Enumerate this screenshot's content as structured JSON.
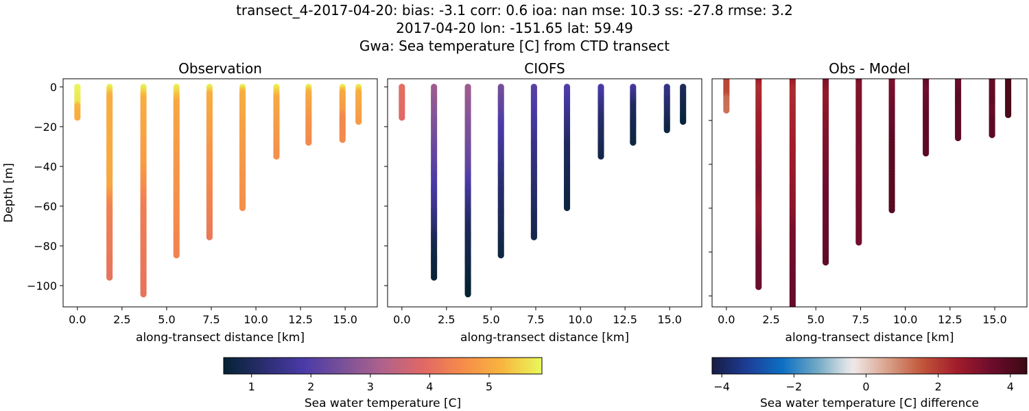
{
  "title_lines": [
    "transect_4-2017-04-20: bias: -3.1  corr: 0.6  ioa: nan  mse: 10.3  ss: -27.8  rmse: 3.2",
    "2017-04-20 lon: -151.65 lat: 59.49",
    "Gwa: Sea temperature [C] from CTD transect"
  ],
  "chart_data": [
    {
      "type": "scatter",
      "title": "Observation",
      "xlabel": "along-transect distance [km]",
      "ylabel": "Depth [m]",
      "xlim": [
        -0.8,
        16.8
      ],
      "ylim": [
        -110.7,
        4.1
      ],
      "xticks": [
        "0.0",
        "2.5",
        "5.0",
        "7.5",
        "10.0",
        "12.5",
        "15.0"
      ],
      "yticks": [
        "0",
        "−20",
        "−40",
        "−60",
        "−80",
        "−100"
      ],
      "colormap": "thermal",
      "casts": [
        {
          "x": 0.0,
          "profile": [
            [
              0,
              5.85
            ],
            [
              -8,
              5.7
            ],
            [
              -10,
              5.2
            ],
            [
              -16,
              5.1
            ]
          ]
        },
        {
          "x": 1.8,
          "profile": [
            [
              0,
              5.8
            ],
            [
              -5,
              5.1
            ],
            [
              -50,
              5.0
            ],
            [
              -60,
              4.4
            ],
            [
              -96,
              4.1
            ]
          ]
        },
        {
          "x": 3.7,
          "profile": [
            [
              0,
              5.8
            ],
            [
              -6,
              5.1
            ],
            [
              -40,
              4.8
            ],
            [
              -60,
              4.3
            ],
            [
              -105,
              4.1
            ]
          ]
        },
        {
          "x": 5.55,
          "profile": [
            [
              0,
              5.8
            ],
            [
              -8,
              5.0
            ],
            [
              -30,
              4.8
            ],
            [
              -85,
              4.4
            ]
          ]
        },
        {
          "x": 7.4,
          "profile": [
            [
              0,
              5.8
            ],
            [
              -4,
              5.1
            ],
            [
              -40,
              4.6
            ],
            [
              -76,
              4.2
            ]
          ]
        },
        {
          "x": 9.25,
          "profile": [
            [
              0,
              5.8
            ],
            [
              -3,
              5.1
            ],
            [
              -30,
              4.8
            ],
            [
              -61,
              4.6
            ]
          ]
        },
        {
          "x": 11.15,
          "profile": [
            [
              0,
              5.8
            ],
            [
              -6,
              5.0
            ],
            [
              -35,
              4.6
            ]
          ]
        },
        {
          "x": 12.95,
          "profile": [
            [
              0,
              5.8
            ],
            [
              -3,
              5.1
            ],
            [
              -15,
              4.7
            ],
            [
              -28,
              4.5
            ]
          ]
        },
        {
          "x": 14.85,
          "profile": [
            [
              0,
              5.8
            ],
            [
              -3,
              5.0
            ],
            [
              -12,
              4.8
            ],
            [
              -15,
              4.5
            ],
            [
              -27,
              4.5
            ]
          ]
        },
        {
          "x": 15.75,
          "profile": [
            [
              0,
              5.8
            ],
            [
              -3,
              5.1
            ],
            [
              -18,
              4.8
            ]
          ]
        }
      ]
    },
    {
      "type": "scatter",
      "title": "CIOFS",
      "xlabel": "along-transect distance [km]",
      "xlim": [
        -0.8,
        16.8
      ],
      "ylim": [
        -110.7,
        4.1
      ],
      "xticks": [
        "0.0",
        "2.5",
        "5.0",
        "7.5",
        "10.0",
        "12.5",
        "15.0"
      ],
      "colormap": "thermal",
      "casts": [
        {
          "x": 0.0,
          "profile": [
            [
              0,
              4.0
            ],
            [
              -16,
              3.9
            ]
          ]
        },
        {
          "x": 1.8,
          "profile": [
            [
              0,
              3.0
            ],
            [
              -40,
              2.1
            ],
            [
              -60,
              1.6
            ],
            [
              -80,
              0.8
            ],
            [
              -96,
              0.6
            ]
          ]
        },
        {
          "x": 3.7,
          "profile": [
            [
              0,
              3.0
            ],
            [
              -40,
              2.2
            ],
            [
              -70,
              1.0
            ],
            [
              -105,
              0.5
            ]
          ]
        },
        {
          "x": 5.55,
          "profile": [
            [
              0,
              2.5
            ],
            [
              -20,
              1.9
            ],
            [
              -50,
              1.2
            ],
            [
              -85,
              0.7
            ]
          ]
        },
        {
          "x": 7.4,
          "profile": [
            [
              0,
              2.1
            ],
            [
              -30,
              1.5
            ],
            [
              -76,
              0.8
            ]
          ]
        },
        {
          "x": 9.25,
          "profile": [
            [
              0,
              2.0
            ],
            [
              -30,
              1.0
            ],
            [
              -61,
              0.7
            ]
          ]
        },
        {
          "x": 11.15,
          "profile": [
            [
              0,
              1.9
            ],
            [
              -15,
              1.2
            ],
            [
              -35,
              0.8
            ]
          ]
        },
        {
          "x": 12.95,
          "profile": [
            [
              0,
              1.8
            ],
            [
              -10,
              1.0
            ],
            [
              -28,
              0.7
            ]
          ]
        },
        {
          "x": 14.85,
          "profile": [
            [
              0,
              1.5
            ],
            [
              -22,
              0.7
            ]
          ]
        },
        {
          "x": 15.75,
          "profile": [
            [
              0,
              1.0
            ],
            [
              -18,
              0.6
            ]
          ]
        }
      ]
    },
    {
      "type": "scatter",
      "title": "Obs - Model",
      "xlabel": "along-transect distance [km]",
      "xlim": [
        -0.8,
        16.8
      ],
      "ylim": [
        -105,
        -1
      ],
      "xticks": [
        "0.0",
        "2.5",
        "5.0",
        "7.5",
        "10.0",
        "12.5",
        "15.0"
      ],
      "colormap": "balance",
      "difference_of": [
        "Observation",
        "CIOFS"
      ]
    }
  ],
  "colorbars": [
    {
      "label": "Sea water temperature [C]",
      "range": [
        0.53,
        5.89
      ],
      "ticks": [
        "1",
        "2",
        "3",
        "4",
        "5"
      ],
      "tick_values": [
        1,
        2,
        3,
        4,
        5
      ],
      "colormap": "thermal"
    },
    {
      "label": "Sea water temperature [C] difference",
      "range": [
        -4.27,
        4.46
      ],
      "ticks": [
        "−4",
        "−2",
        "0",
        "2",
        "4"
      ],
      "tick_values": [
        -4,
        -2,
        0,
        2,
        4
      ],
      "colormap": "balance"
    }
  ],
  "colors": {
    "thermal": [
      "#042333",
      "#2a2d6e",
      "#4a3aa8",
      "#7a5199",
      "#b0628c",
      "#e06865",
      "#f58c4a",
      "#f9b53f",
      "#e8fa5b"
    ],
    "balance": [
      "#181c43",
      "#1d3d96",
      "#0b6fc4",
      "#6fa8c4",
      "#f1ecec",
      "#d9a28b",
      "#c1553a",
      "#a21c2b",
      "#6b0c2c",
      "#3c0912"
    ]
  }
}
